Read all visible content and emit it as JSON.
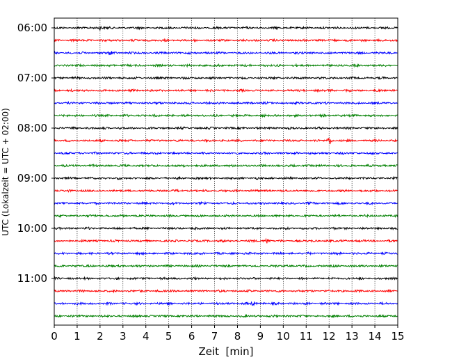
{
  "chart_data": {
    "type": "line",
    "title": "",
    "xlabel": "Zeit  [min]",
    "ylabel": "UTC (Lokalzeit = UTC + 02:00)",
    "xlim": [
      0,
      15
    ],
    "xticks": [
      0,
      1,
      2,
      3,
      4,
      5,
      6,
      7,
      8,
      9,
      10,
      11,
      12,
      13,
      14,
      15
    ],
    "xtick_labels": [
      "0",
      "1",
      "2",
      "3",
      "4",
      "5",
      "6",
      "7",
      "8",
      "9",
      "10",
      "11",
      "12",
      "13",
      "14",
      "15"
    ],
    "ytick_labels": [
      "06:00",
      "07:00",
      "08:00",
      "09:00",
      "10:00",
      "11:00"
    ],
    "x_grid": true,
    "trace_colors": [
      "#000000",
      "#ff0000",
      "#0000ff",
      "#008000"
    ],
    "traces_start": "06:00",
    "trace_interval_min": 15,
    "trace_count": 24,
    "events": [
      {
        "trace": 0,
        "at_min": 2.0,
        "amp": 1.0
      },
      {
        "trace": 2,
        "at_min": 2.5,
        "amp": 1.0
      },
      {
        "trace": 9,
        "at_min": 12.0,
        "amp": 1.8
      },
      {
        "trace": 17,
        "at_min": 9.3,
        "amp": 1.3
      },
      {
        "trace": 22,
        "at_min": 8.7,
        "amp": 1.0
      }
    ]
  }
}
